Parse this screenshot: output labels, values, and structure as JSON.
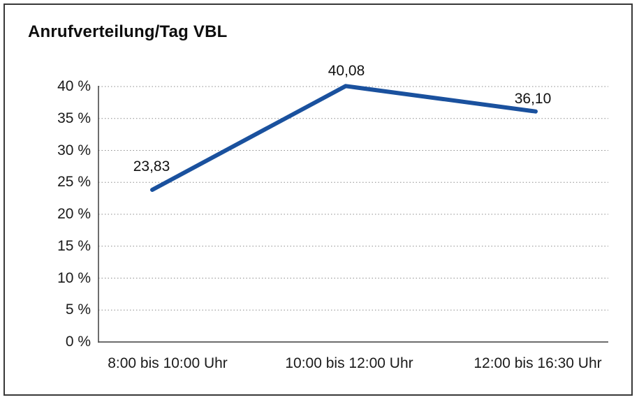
{
  "header": {
    "title": "Anrufverteilung/Tag VBL"
  },
  "chart_data": {
    "type": "line",
    "title": "Anrufverteilung/Tag VBL",
    "categories": [
      "8:00 bis 10:00 Uhr",
      "10:00 bis 12:00 Uhr",
      "12:00 bis 16:30 Uhr"
    ],
    "values": [
      23.83,
      40.08,
      36.1
    ],
    "value_labels": [
      "23,83",
      "40,08",
      "36,10"
    ],
    "xlabel": "",
    "ylabel": "",
    "ylim": [
      0,
      40
    ],
    "y_tick_step": 5,
    "y_tick_labels": [
      "0 %",
      "5 %",
      "10 %",
      "15 %",
      "20 %",
      "25 %",
      "30 %",
      "35 %",
      "40 %"
    ],
    "grid": "horizontal-dotted",
    "legend_position": "none",
    "line_color": "#1a519e",
    "grid_color": "#8c8c8c",
    "axis_color": "#3d3d3d",
    "text_color": "#1a1a1a",
    "frame_color": "#383838",
    "background_color": "#ffffff"
  }
}
